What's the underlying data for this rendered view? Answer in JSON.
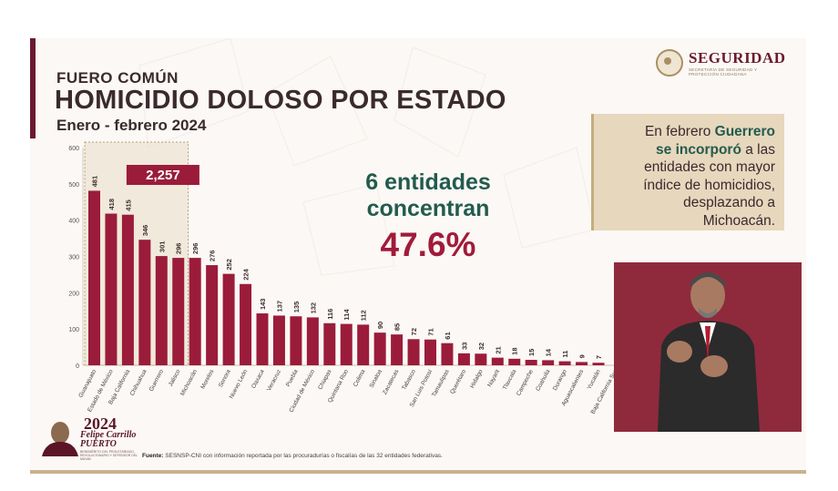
{
  "header": {
    "subtitle": "FUERO COMÚN",
    "title": "HOMICIDIO DOLOSO POR ESTADO",
    "period": "Enero - febrero 2024"
  },
  "logo": {
    "title": "SEGURIDAD",
    "subtitle": "SECRETARÍA DE SEGURIDAD Y PROTECCIÓN CIUDADANA"
  },
  "callout": {
    "line1_pre": "En febrero ",
    "line1_bold": "Guerrero",
    "line2_bold": "se incorporó",
    "line2_post": " a las",
    "line3": "entidades con mayor",
    "line4": "índice de homicidios,",
    "line5": "desplazando a",
    "line6": "Michoacán."
  },
  "highlight": {
    "line1": "6 entidades",
    "line2": "concentran",
    "percent": "47.6%"
  },
  "footer": {
    "year": "2024",
    "name_line1": "Felipe Carrillo",
    "name_line2": "PUERTO",
    "caption": "BENEMÉRITO DEL PROLETARIADO, REVOLUCIONARIO Y DEFENSOR DEL MAYAB",
    "source_label": "Fuente:",
    "source_text": " SESNSP-CNI con información reportada por las procuradurías o fiscalías de las 32 entidades federativas."
  },
  "colors": {
    "bar": "#9b1c3a",
    "highlight_box": "#9b1c3a",
    "accent_green": "#235b4e",
    "accent_red": "#a11b3a",
    "callout_bg": "#e7d7bd",
    "speaker_bg": "#8e2a3c"
  },
  "chart_data": {
    "type": "bar",
    "categories": [
      "Guanajuato",
      "Estado de México",
      "Baja California",
      "Chihuahua",
      "Guerrero",
      "Jalisco",
      "Michoacán",
      "Morelos",
      "Sonora",
      "Nuevo León",
      "Oaxaca",
      "Veracruz",
      "Puebla",
      "Ciudad de México",
      "Chiapas",
      "Quintana Roo",
      "Colima",
      "Sinaloa",
      "Zacatecas",
      "Tabasco",
      "San Luis Potosí",
      "Tamaulipas",
      "Querétaro",
      "Hidalgo",
      "Nayarit",
      "Tlaxcala",
      "Campeche",
      "Coahuila",
      "Durango",
      "Aguascalientes",
      "Yucatán",
      "Baja California Sur"
    ],
    "values": [
      481,
      418,
      415,
      346,
      301,
      296,
      296,
      276,
      252,
      224,
      143,
      137,
      135,
      132,
      116,
      114,
      112,
      90,
      85,
      72,
      71,
      61,
      33,
      32,
      21,
      18,
      15,
      14,
      11,
      9,
      7,
      null
    ],
    "value_labels": [
      "481",
      "418",
      "415",
      "346",
      "301",
      "296",
      "296",
      "276",
      "252",
      "224",
      "143",
      "137",
      "135",
      "132",
      "116",
      "114",
      "112",
      "90",
      "85",
      "72",
      "71",
      "61",
      "33",
      "32",
      "21",
      "18",
      "15",
      "14",
      "11",
      "9",
      "7",
      ""
    ],
    "ylim": [
      0,
      600
    ],
    "yticks": [
      "0",
      "100",
      "200",
      "300",
      "400",
      "500",
      "600"
    ],
    "highlight_group": {
      "first": 0,
      "count": 6,
      "total_label": "2,257"
    },
    "grid": false,
    "legend": "none"
  }
}
